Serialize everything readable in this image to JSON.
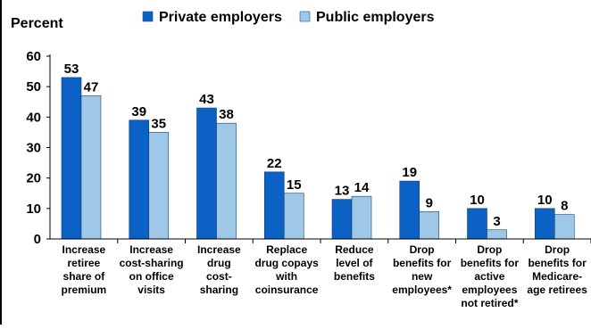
{
  "chart_data": {
    "type": "bar",
    "title": "",
    "ylabel": "Percent",
    "xlabel": "",
    "ylim": [
      0,
      60
    ],
    "yticks": [
      0,
      10,
      20,
      30,
      40,
      50,
      60
    ],
    "grid": false,
    "legend_position": "top",
    "categories": [
      [
        "Increase",
        "retiree",
        "share of",
        "premium"
      ],
      [
        "Increase",
        "cost-sharing",
        "on office",
        "visits"
      ],
      [
        "Increase",
        "drug",
        "cost-",
        "sharing"
      ],
      [
        "Replace",
        "drug copays",
        "with",
        "coinsurance"
      ],
      [
        "Reduce",
        "level of",
        "benefits"
      ],
      [
        "Drop",
        "benefits for",
        "new",
        "employees*"
      ],
      [
        "Drop",
        "benefits for",
        "active",
        "employees",
        "not retired*"
      ],
      [
        "Drop",
        "benefits for",
        "Medicare-",
        "age retirees"
      ]
    ],
    "series": [
      {
        "name": "Private employers",
        "color": "#0b62c4",
        "values": [
          53,
          39,
          43,
          22,
          13,
          19,
          10,
          10
        ]
      },
      {
        "name": "Public employers",
        "color": "#9fc8e8",
        "values": [
          47,
          35,
          38,
          15,
          14,
          9,
          3,
          8
        ]
      }
    ]
  }
}
